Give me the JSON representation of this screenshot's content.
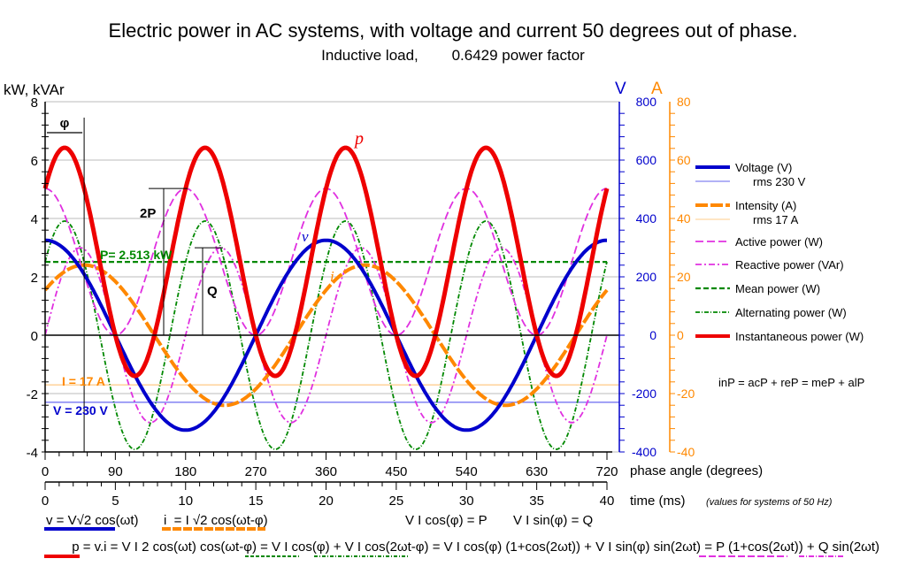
{
  "chart_data": {
    "type": "line",
    "title": "Electric power in AC systems, with voltage and current 50 degrees out of phase.",
    "subtitle": "Inductive load,        0.6429 power factor",
    "xlabel": "phase angle (degrees)",
    "x2label": "time (ms)",
    "x2note": "(values for systems of 50 Hz)",
    "ylabel_left": "kW, kVAr",
    "ylabel_v": "V",
    "ylabel_a": "A",
    "xlim": [
      0,
      720
    ],
    "ylim": [
      -4,
      8
    ],
    "ylim_v": [
      -400,
      800
    ],
    "ylim_a": [
      -40,
      80
    ],
    "x_ticks": [
      "0",
      "90",
      "180",
      "270",
      "360",
      "450",
      "540",
      "630",
      "720"
    ],
    "time_ticks": [
      "0",
      "5",
      "10",
      "15",
      "20",
      "25",
      "30",
      "35",
      "40"
    ],
    "y_ticks": [
      "-4",
      "-2",
      "0",
      "2",
      "4",
      "6",
      "8"
    ],
    "v_ticks": [
      "-400",
      "-200",
      "0",
      "200",
      "400",
      "600",
      "800"
    ],
    "a_ticks": [
      "-40",
      "-20",
      "0",
      "20",
      "40",
      "60",
      "80"
    ],
    "grid": true,
    "legend_position": "right",
    "params": {
      "V_rms": 230,
      "I_rms": 17,
      "phi_deg": 50,
      "P_kW": 2.513,
      "Q_kVAr": 2.995,
      "power_factor": 0.6429
    },
    "series": [
      {
        "name": "Voltage (V)",
        "sub": "rms 230 V",
        "color": "#0000cc",
        "formula": "325.3 cos(x) V",
        "amplitude": 325.3,
        "phase_deg": 0,
        "axis": "V"
      },
      {
        "name": "Intensity (A)",
        "sub": "rms 17 A",
        "color": "#ff8800",
        "formula": "24.04 cos(x-50) A",
        "amplitude": 24.04,
        "phase_deg": -50,
        "axis": "A"
      },
      {
        "name": "Active power (W)",
        "color": "#e030e0",
        "formula": "P (1+cos 2x)",
        "axis": "kW"
      },
      {
        "name": "Reactive power (VAr)",
        "color": "#e030e0",
        "formula": "Q sin 2x",
        "axis": "kW"
      },
      {
        "name": "Mean power (W)",
        "color": "#008800",
        "formula": "P",
        "axis": "kW"
      },
      {
        "name": "Alternating power (W)",
        "color": "#008800",
        "formula": "VI cos(2x-50)",
        "axis": "kW"
      },
      {
        "name": "Instantaneous power (W)",
        "color": "#ee0000",
        "formula": "v·i",
        "axis": "kW"
      }
    ],
    "annotations": {
      "phi": "φ",
      "two_p": "2P",
      "q": "Q",
      "p_label": "P= 2.513 kW",
      "i_rms": "I = 17 A",
      "v_rms": "V = 230 V",
      "curve_p": "p",
      "curve_v": "v",
      "curve_i": "i",
      "identity": "inP = acP + reP = meP + alP"
    }
  },
  "formulas": {
    "v": "v = V√2 cos(ωt)",
    "i": "i  = I √2 cos(ωt-φ)",
    "p_eq": "V I cos(φ) = P",
    "q_eq": "V I sin(φ) = Q",
    "line2": [
      "p = v.i",
      " = V I 2 cos(ωt) cos(ωt-φ) = ",
      "V I cos(φ)",
      " + ",
      "V I cos(2ωt-φ)",
      " = V I cos(φ) (1+cos(2ωt)) + V I sin(φ) sin(2ωt) = ",
      "P (1+cos(2ωt))",
      " + ",
      "Q sin(2ωt)"
    ]
  }
}
